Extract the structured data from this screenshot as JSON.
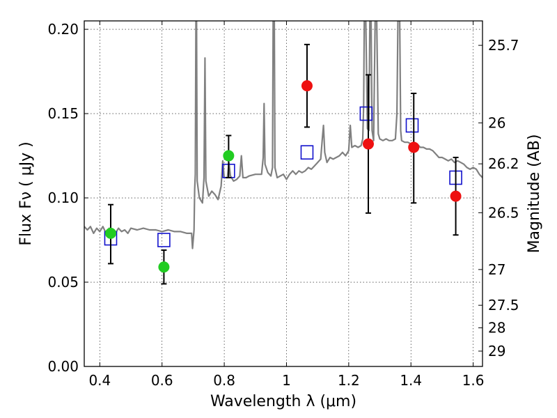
{
  "chart_data": {
    "type": "scatter",
    "xlabel": "Wavelength  λ (μm)",
    "ylabel": "Flux  Fν  ( μJy )",
    "ylabel_right": "Magnitude (AB)",
    "xlim": [
      0.35,
      1.63
    ],
    "ylim": [
      0.0,
      0.205
    ],
    "grid": true,
    "x_ticks": [
      0.4,
      0.6,
      0.8,
      1.0,
      1.2,
      1.4,
      1.6
    ],
    "x_tick_labels": [
      "0.4",
      "0.6",
      "0.8",
      "1",
      "1.2",
      "1.4",
      "1.6"
    ],
    "y_ticks": [
      0.0,
      0.05,
      0.1,
      0.15,
      0.2
    ],
    "y_tick_labels": [
      "0.00",
      "0.05",
      "0.10",
      "0.15",
      "0.20"
    ],
    "right_ticks": [
      {
        "label": "25.7",
        "flux": 0.1905
      },
      {
        "label": "26",
        "flux": 0.1445
      },
      {
        "label": "26.2",
        "flux": 0.1202
      },
      {
        "label": "26.5",
        "flux": 0.0912
      },
      {
        "label": "27",
        "flux": 0.0575
      },
      {
        "label": "27.5",
        "flux": 0.0363
      },
      {
        "label": "28",
        "flux": 0.0229
      },
      {
        "label": "29",
        "flux": 0.0091
      }
    ],
    "series": [
      {
        "name": "green-photometry",
        "color": "#22cc22",
        "marker": "circle",
        "points": [
          {
            "x": 0.435,
            "y": 0.079,
            "ylo": 0.061,
            "yhi": 0.096
          },
          {
            "x": 0.606,
            "y": 0.059,
            "ylo": 0.049,
            "yhi": 0.069
          },
          {
            "x": 0.814,
            "y": 0.125,
            "ylo": 0.112,
            "yhi": 0.137
          }
        ]
      },
      {
        "name": "red-photometry",
        "color": "#ee1111",
        "marker": "circle",
        "points": [
          {
            "x": 1.066,
            "y": 0.1665,
            "ylo": 0.142,
            "yhi": 0.191
          },
          {
            "x": 1.263,
            "y": 0.132,
            "ylo": 0.091,
            "yhi": 0.173
          },
          {
            "x": 1.409,
            "y": 0.13,
            "ylo": 0.097,
            "yhi": 0.162
          },
          {
            "x": 1.544,
            "y": 0.101,
            "ylo": 0.078,
            "yhi": 0.124
          }
        ]
      },
      {
        "name": "model-synthetic-photometry",
        "color": "#1111cc",
        "marker": "open-square",
        "points": [
          {
            "x": 0.435,
            "y": 0.076
          },
          {
            "x": 0.606,
            "y": 0.075
          },
          {
            "x": 0.814,
            "y": 0.116
          },
          {
            "x": 1.066,
            "y": 0.127
          },
          {
            "x": 1.256,
            "y": 0.15
          },
          {
            "x": 1.404,
            "y": 0.143
          },
          {
            "x": 1.544,
            "y": 0.112
          }
        ]
      },
      {
        "name": "model-spectrum",
        "color": "#808080",
        "marker": "line",
        "points": [
          [
            0.35,
            0.083
          ],
          [
            0.36,
            0.081
          ],
          [
            0.37,
            0.083
          ],
          [
            0.38,
            0.079
          ],
          [
            0.39,
            0.082
          ],
          [
            0.4,
            0.08
          ],
          [
            0.41,
            0.083
          ],
          [
            0.42,
            0.079
          ],
          [
            0.43,
            0.082
          ],
          [
            0.44,
            0.081
          ],
          [
            0.45,
            0.079
          ],
          [
            0.46,
            0.082
          ],
          [
            0.47,
            0.08
          ],
          [
            0.48,
            0.081
          ],
          [
            0.49,
            0.079
          ],
          [
            0.5,
            0.082
          ],
          [
            0.52,
            0.081
          ],
          [
            0.54,
            0.082
          ],
          [
            0.56,
            0.081
          ],
          [
            0.58,
            0.081
          ],
          [
            0.6,
            0.08
          ],
          [
            0.62,
            0.081
          ],
          [
            0.64,
            0.08
          ],
          [
            0.66,
            0.08
          ],
          [
            0.68,
            0.079
          ],
          [
            0.695,
            0.079
          ],
          [
            0.698,
            0.07
          ],
          [
            0.703,
            0.081
          ],
          [
            0.705,
            0.105
          ],
          [
            0.707,
            0.114
          ],
          [
            0.709,
            0.205
          ],
          [
            0.711,
            0.205
          ],
          [
            0.713,
            0.11
          ],
          [
            0.72,
            0.1
          ],
          [
            0.73,
            0.097
          ],
          [
            0.735,
            0.112
          ],
          [
            0.738,
            0.183
          ],
          [
            0.741,
            0.11
          ],
          [
            0.75,
            0.101
          ],
          [
            0.76,
            0.104
          ],
          [
            0.77,
            0.102
          ],
          [
            0.78,
            0.099
          ],
          [
            0.79,
            0.107
          ],
          [
            0.795,
            0.122
          ],
          [
            0.8,
            0.112
          ],
          [
            0.81,
            0.112
          ],
          [
            0.815,
            0.121
          ],
          [
            0.82,
            0.113
          ],
          [
            0.83,
            0.11
          ],
          [
            0.84,
            0.111
          ],
          [
            0.85,
            0.113
          ],
          [
            0.855,
            0.125
          ],
          [
            0.86,
            0.112
          ],
          [
            0.87,
            0.112
          ],
          [
            0.88,
            0.113
          ],
          [
            0.9,
            0.114
          ],
          [
            0.92,
            0.114
          ],
          [
            0.925,
            0.124
          ],
          [
            0.928,
            0.156
          ],
          [
            0.931,
            0.12
          ],
          [
            0.94,
            0.115
          ],
          [
            0.95,
            0.113
          ],
          [
            0.955,
            0.118
          ],
          [
            0.957,
            0.205
          ],
          [
            0.961,
            0.205
          ],
          [
            0.963,
            0.118
          ],
          [
            0.97,
            0.112
          ],
          [
            0.98,
            0.113
          ],
          [
            0.99,
            0.114
          ],
          [
            1.0,
            0.111
          ],
          [
            1.01,
            0.114
          ],
          [
            1.02,
            0.116
          ],
          [
            1.03,
            0.114
          ],
          [
            1.04,
            0.116
          ],
          [
            1.05,
            0.115
          ],
          [
            1.06,
            0.116
          ],
          [
            1.07,
            0.118
          ],
          [
            1.08,
            0.117
          ],
          [
            1.09,
            0.119
          ],
          [
            1.1,
            0.121
          ],
          [
            1.11,
            0.123
          ],
          [
            1.115,
            0.135
          ],
          [
            1.119,
            0.143
          ],
          [
            1.123,
            0.127
          ],
          [
            1.13,
            0.121
          ],
          [
            1.14,
            0.124
          ],
          [
            1.15,
            0.123
          ],
          [
            1.16,
            0.124
          ],
          [
            1.17,
            0.125
          ],
          [
            1.18,
            0.127
          ],
          [
            1.19,
            0.125
          ],
          [
            1.2,
            0.128
          ],
          [
            1.205,
            0.143
          ],
          [
            1.21,
            0.13
          ],
          [
            1.22,
            0.131
          ],
          [
            1.23,
            0.13
          ],
          [
            1.24,
            0.131
          ],
          [
            1.245,
            0.135
          ],
          [
            1.248,
            0.155
          ],
          [
            1.25,
            0.205
          ],
          [
            1.255,
            0.205
          ],
          [
            1.26,
            0.141
          ],
          [
            1.265,
            0.14
          ],
          [
            1.268,
            0.205
          ],
          [
            1.272,
            0.205
          ],
          [
            1.275,
            0.14
          ],
          [
            1.28,
            0.134
          ],
          [
            1.285,
            0.205
          ],
          [
            1.29,
            0.205
          ],
          [
            1.295,
            0.138
          ],
          [
            1.3,
            0.135
          ],
          [
            1.31,
            0.134
          ],
          [
            1.32,
            0.135
          ],
          [
            1.33,
            0.134
          ],
          [
            1.34,
            0.134
          ],
          [
            1.35,
            0.135
          ],
          [
            1.355,
            0.15
          ],
          [
            1.358,
            0.205
          ],
          [
            1.364,
            0.205
          ],
          [
            1.367,
            0.14
          ],
          [
            1.37,
            0.134
          ],
          [
            1.38,
            0.133
          ],
          [
            1.39,
            0.133
          ],
          [
            1.4,
            0.132
          ],
          [
            1.41,
            0.131
          ],
          [
            1.42,
            0.132
          ],
          [
            1.43,
            0.13
          ],
          [
            1.44,
            0.13
          ],
          [
            1.45,
            0.129
          ],
          [
            1.46,
            0.129
          ],
          [
            1.47,
            0.128
          ],
          [
            1.48,
            0.126
          ],
          [
            1.49,
            0.124
          ],
          [
            1.5,
            0.124
          ],
          [
            1.51,
            0.123
          ],
          [
            1.52,
            0.122
          ],
          [
            1.53,
            0.123
          ],
          [
            1.54,
            0.121
          ],
          [
            1.55,
            0.122
          ],
          [
            1.56,
            0.121
          ],
          [
            1.57,
            0.12
          ],
          [
            1.58,
            0.118
          ],
          [
            1.59,
            0.117
          ],
          [
            1.6,
            0.118
          ],
          [
            1.61,
            0.117
          ],
          [
            1.62,
            0.114
          ],
          [
            1.63,
            0.112
          ]
        ]
      }
    ]
  }
}
